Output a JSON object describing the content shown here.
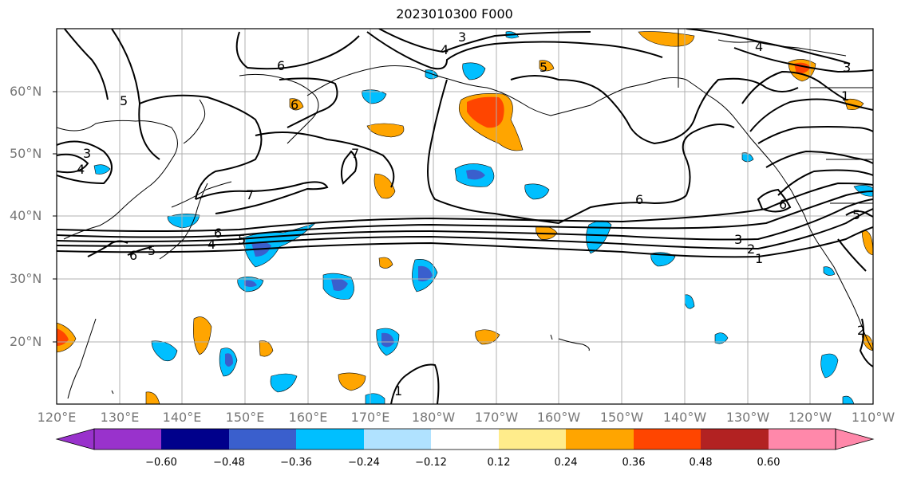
{
  "title": "2023010300 F000",
  "axes": {
    "lat_labels": [
      "60°N",
      "50°N",
      "40°N",
      "30°N",
      "20°N"
    ],
    "lon_labels": [
      "120°E",
      "130°E",
      "140°E",
      "150°E",
      "160°E",
      "170°E",
      "180°W",
      "170°W",
      "160°W",
      "150°W",
      "140°W",
      "130°W",
      "120°W",
      "110°W"
    ]
  },
  "colorbar": {
    "ticks": [
      "−0.60",
      "−0.48",
      "−0.36",
      "−0.24",
      "−0.12",
      "0.12",
      "0.24",
      "0.36",
      "0.48",
      "0.60"
    ],
    "colors": [
      "#9932cc",
      "#00008b",
      "#3a5fcd",
      "#00bfff",
      "#b0e2ff",
      "#ffffff",
      "#ffec8b",
      "#ffa500",
      "#ff4500",
      "#b22222",
      "#ff88aa"
    ]
  },
  "contour_labels": [
    "6",
    "3",
    "4",
    "5",
    "6",
    "4",
    "3",
    "1",
    "7",
    "4",
    "3",
    "5",
    "7",
    "6",
    "5",
    "4",
    "6",
    "3",
    "2",
    "1",
    "6",
    "5",
    "2",
    "1",
    "6",
    "5"
  ]
}
